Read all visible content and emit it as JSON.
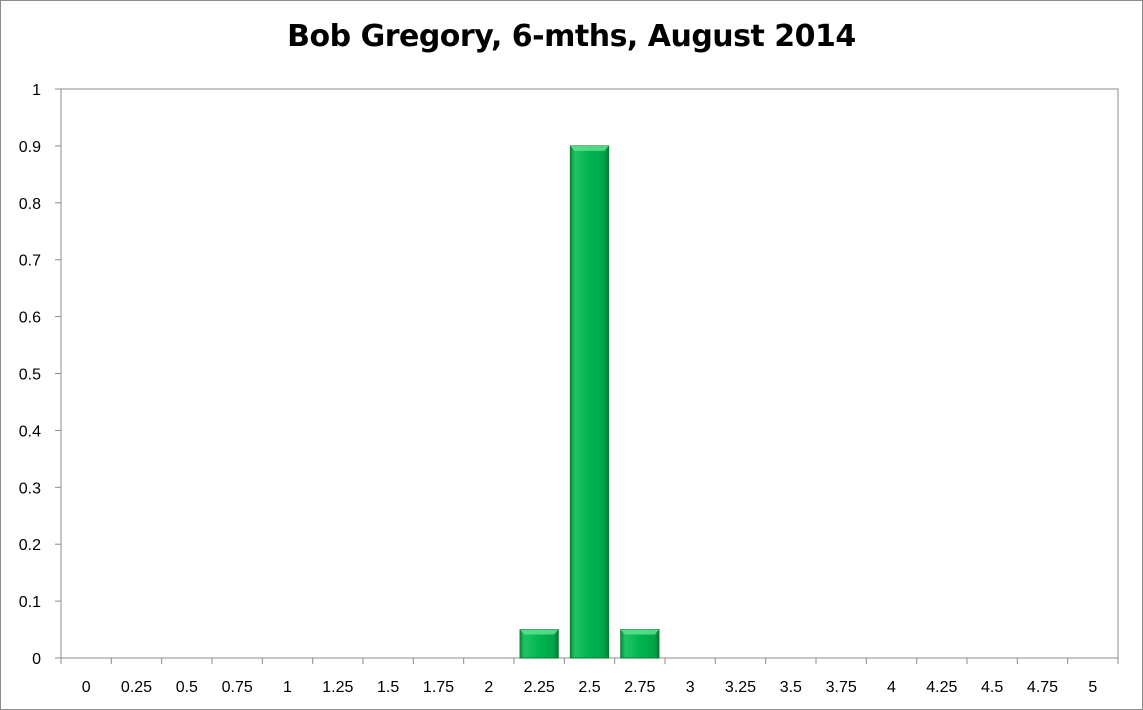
{
  "chart_data": {
    "type": "bar",
    "title": "Bob Gregory, 6-mths, August 2014",
    "xlabel": "",
    "ylabel": "",
    "categories": [
      "0",
      "0.25",
      "0.5",
      "0.75",
      "1",
      "1.25",
      "1.5",
      "1.75",
      "2",
      "2.25",
      "2.5",
      "2.75",
      "3",
      "3.25",
      "3.5",
      "3.75",
      "4",
      "4.25",
      "4.5",
      "4.75",
      "5"
    ],
    "values": [
      0,
      0,
      0,
      0,
      0,
      0,
      0,
      0,
      0,
      0.05,
      0.9,
      0.05,
      0,
      0,
      0,
      0,
      0,
      0,
      0,
      0,
      0
    ],
    "ylim": [
      0,
      1
    ],
    "yticks": [
      "0",
      "0.1",
      "0.2",
      "0.3",
      "0.4",
      "0.5",
      "0.6",
      "0.7",
      "0.8",
      "0.9",
      "1"
    ],
    "grid": false,
    "legend": "none",
    "bar_color": "#00b050",
    "bar_edge_color": "#0a7a34"
  }
}
